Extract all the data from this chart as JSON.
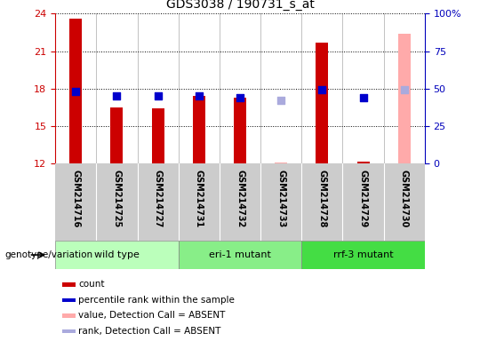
{
  "title": "GDS3038 / 190731_s_at",
  "samples": [
    "GSM214716",
    "GSM214725",
    "GSM214727",
    "GSM214731",
    "GSM214732",
    "GSM214733",
    "GSM214728",
    "GSM214729",
    "GSM214730"
  ],
  "group_spans": [
    [
      0,
      2,
      "wild type",
      "#bbffbb"
    ],
    [
      3,
      5,
      "eri-1 mutant",
      "#88ee88"
    ],
    [
      6,
      8,
      "rrf-3 mutant",
      "#44dd44"
    ]
  ],
  "ylim_left": [
    12,
    24
  ],
  "ylim_right": [
    0,
    100
  ],
  "yticks_left": [
    12,
    15,
    18,
    21,
    24
  ],
  "yticks_right": [
    0,
    25,
    50,
    75,
    100
  ],
  "ytick_labels_right": [
    "0",
    "25",
    "50",
    "75",
    "100%"
  ],
  "bar_color_present": "#cc0000",
  "bar_color_absent": "#ffaaaa",
  "dot_color_present": "#0000cc",
  "dot_color_absent": "#aaaadd",
  "bar_bottom": 12,
  "bar_width": 0.3,
  "dot_size": 28,
  "counts_present": [
    23.6,
    16.5,
    16.4,
    17.4,
    17.3,
    null,
    21.7,
    12.2,
    null
  ],
  "counts_absent": [
    null,
    null,
    null,
    null,
    null,
    12.1,
    null,
    null,
    22.4
  ],
  "ranks_present": [
    17.8,
    17.4,
    17.4,
    17.4,
    17.3,
    null,
    17.9,
    17.3,
    null
  ],
  "ranks_absent": [
    null,
    null,
    null,
    null,
    null,
    17.1,
    null,
    null,
    17.9
  ],
  "absent_flags": [
    false,
    false,
    false,
    false,
    false,
    true,
    false,
    false,
    true
  ],
  "bg_sample_box": "#cccccc",
  "genotype_label": "genotype/variation",
  "legend_items": [
    {
      "color": "#cc0000",
      "label": "count"
    },
    {
      "color": "#0000cc",
      "label": "percentile rank within the sample"
    },
    {
      "color": "#ffaaaa",
      "label": "value, Detection Call = ABSENT"
    },
    {
      "color": "#aaaadd",
      "label": "rank, Detection Call = ABSENT"
    }
  ],
  "left_ylabel_color": "#cc0000",
  "right_ylabel_color": "#0000bb"
}
